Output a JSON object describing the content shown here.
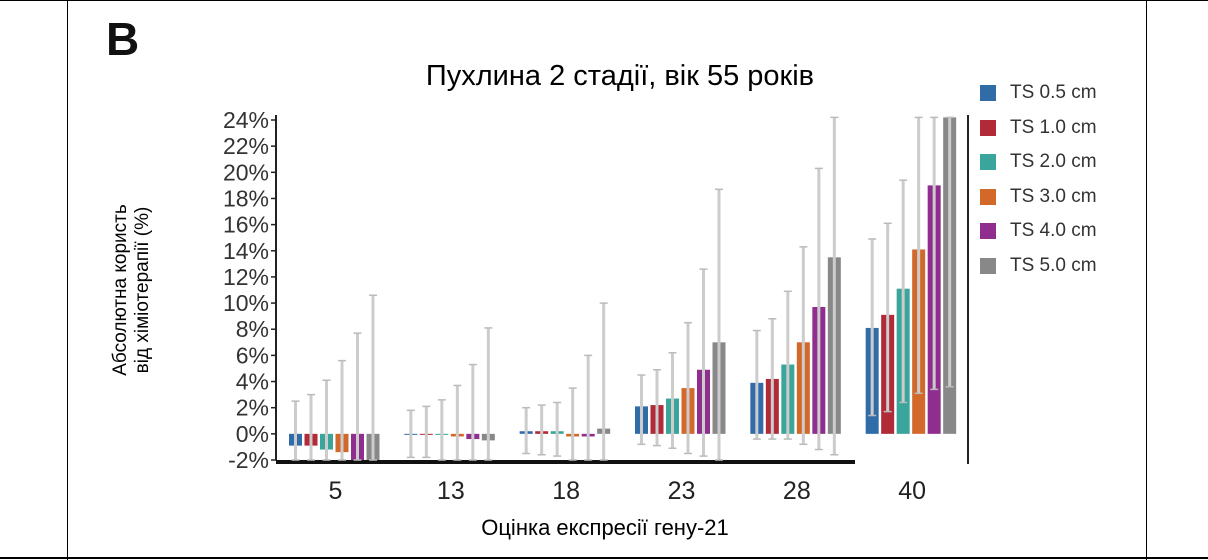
{
  "panel_label": "B",
  "chart_data": {
    "type": "bar",
    "title": "Пухлина 2 стадії, вік 55 років",
    "xlabel": "Оцінка експресії гену-21",
    "ylabel_lines": [
      "Абсолютна користь",
      "від хіміотерапії (%)"
    ],
    "categories": [
      "5",
      "13",
      "18",
      "23",
      "28",
      "40"
    ],
    "ylim": [
      -2,
      24
    ],
    "yticks": [
      -2,
      0,
      2,
      4,
      6,
      8,
      10,
      12,
      14,
      16,
      18,
      20,
      22,
      24
    ],
    "ytick_labels": [
      "-2%",
      "0%",
      "2%",
      "4%",
      "6%",
      "8%",
      "10%",
      "12%",
      "14%",
      "16%",
      "18%",
      "20%",
      "22%",
      "24%"
    ],
    "legend_position": "right",
    "series": [
      {
        "name": "TS 0.5 cm",
        "color": "#2f6ca8",
        "values": [
          -0.9,
          0.0,
          0.2,
          2.1,
          3.9,
          8.1
        ],
        "err_low": [
          -2.0,
          -1.8,
          -1.5,
          -0.8,
          -0.4,
          1.4
        ],
        "err_high": [
          2.5,
          1.8,
          2.0,
          4.5,
          7.9,
          14.9
        ]
      },
      {
        "name": "TS 1.0 cm",
        "color": "#b02a37",
        "values": [
          -0.9,
          0.0,
          0.2,
          2.2,
          4.2,
          9.1
        ],
        "err_low": [
          -2.0,
          -1.8,
          -1.6,
          -0.9,
          -0.4,
          1.7
        ],
        "err_high": [
          3.0,
          2.1,
          2.2,
          4.9,
          8.8,
          16.1
        ]
      },
      {
        "name": "TS 2.0 cm",
        "color": "#3aa59b",
        "values": [
          -1.2,
          0.0,
          0.2,
          2.7,
          5.3,
          11.1
        ],
        "err_low": [
          -2.0,
          -2.0,
          -1.7,
          -1.1,
          -0.4,
          2.4
        ],
        "err_high": [
          4.1,
          2.6,
          2.4,
          6.2,
          10.9,
          19.4
        ]
      },
      {
        "name": "TS 3.0 cm",
        "color": "#d2692a",
        "values": [
          -1.4,
          -0.2,
          -0.2,
          3.5,
          7.0,
          14.1
        ],
        "err_low": [
          -2.0,
          -2.0,
          -2.0,
          -1.5,
          -0.8,
          3.1
        ],
        "err_high": [
          5.6,
          3.7,
          3.5,
          8.5,
          14.3,
          24.2
        ]
      },
      {
        "name": "TS 4.0 cm",
        "color": "#8f2e8e",
        "values": [
          -2.0,
          -0.4,
          -0.2,
          4.9,
          9.7,
          19.0
        ],
        "err_low": [
          -2.0,
          -2.0,
          -2.0,
          -1.7,
          -1.2,
          3.4
        ],
        "err_high": [
          7.7,
          5.3,
          6.0,
          12.6,
          20.3,
          24.2
        ]
      },
      {
        "name": "TS 5.0 cm",
        "color": "#888888",
        "values": [
          -2.0,
          -0.5,
          0.4,
          7.0,
          13.5,
          24.2
        ],
        "err_low": [
          -2.0,
          -2.0,
          -2.0,
          -2.0,
          -1.6,
          3.6
        ],
        "err_high": [
          10.6,
          8.1,
          10.0,
          18.7,
          24.2,
          24.2
        ]
      }
    ]
  }
}
